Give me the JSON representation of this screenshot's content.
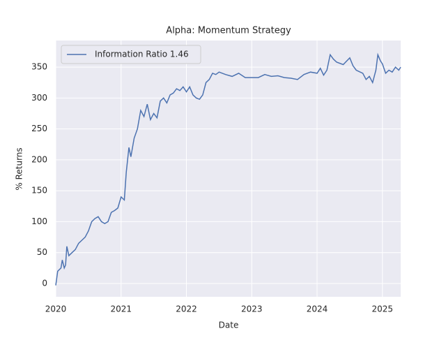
{
  "chart_data": {
    "type": "line",
    "title": "Alpha: Momentum Strategy",
    "x_label": "Date",
    "y_label": "% Returns",
    "x": [
      2020.0,
      2020.03,
      2020.08,
      2020.1,
      2020.13,
      2020.15,
      2020.17,
      2020.2,
      2020.25,
      2020.3,
      2020.35,
      2020.4,
      2020.45,
      2020.5,
      2020.55,
      2020.6,
      2020.65,
      2020.7,
      2020.75,
      2020.8,
      2020.85,
      2020.9,
      2020.95,
      2021.0,
      2021.05,
      2021.08,
      2021.12,
      2021.15,
      2021.2,
      2021.25,
      2021.3,
      2021.35,
      2021.4,
      2021.45,
      2021.5,
      2021.55,
      2021.6,
      2021.65,
      2021.7,
      2021.75,
      2021.8,
      2021.85,
      2021.9,
      2021.95,
      2022.0,
      2022.05,
      2022.1,
      2022.15,
      2022.2,
      2022.25,
      2022.3,
      2022.35,
      2022.4,
      2022.45,
      2022.5,
      2022.6,
      2022.7,
      2022.8,
      2022.9,
      2023.0,
      2023.1,
      2023.2,
      2023.3,
      2023.4,
      2023.5,
      2023.6,
      2023.7,
      2023.8,
      2023.9,
      2024.0,
      2024.05,
      2024.1,
      2024.15,
      2024.2,
      2024.25,
      2024.3,
      2024.4,
      2024.5,
      2024.55,
      2024.6,
      2024.7,
      2024.75,
      2024.8,
      2024.85,
      2024.9,
      2024.93,
      2024.97,
      2025.0,
      2025.05,
      2025.1,
      2025.15,
      2025.2,
      2025.25,
      2025.28
    ],
    "series": [
      {
        "name": "Information Ratio 1.46",
        "color": "#4c72b0",
        "values": [
          -3,
          20,
          25,
          38,
          25,
          30,
          60,
          45,
          50,
          55,
          65,
          70,
          75,
          85,
          100,
          105,
          108,
          100,
          97,
          100,
          115,
          118,
          122,
          140,
          135,
          180,
          220,
          205,
          235,
          250,
          280,
          270,
          290,
          265,
          275,
          268,
          295,
          300,
          292,
          305,
          308,
          315,
          312,
          318,
          310,
          318,
          305,
          300,
          298,
          305,
          325,
          330,
          340,
          338,
          342,
          338,
          335,
          340,
          333,
          333,
          333,
          338,
          335,
          336,
          333,
          332,
          330,
          338,
          342,
          340,
          348,
          337,
          345,
          370,
          363,
          358,
          354,
          365,
          352,
          345,
          340,
          330,
          335,
          325,
          345,
          370,
          360,
          355,
          340,
          345,
          342,
          350,
          345,
          350
        ]
      }
    ],
    "xlim": [
      2020,
      2025.28
    ],
    "xticks": [
      2020,
      2021,
      2022,
      2023,
      2024,
      2025
    ],
    "ylim": [
      -21.5,
      393
    ],
    "yticks": [
      0,
      50,
      100,
      150,
      200,
      250,
      300,
      350
    ],
    "grid": true,
    "legend": "upper left",
    "background": "#eaeaf2"
  }
}
